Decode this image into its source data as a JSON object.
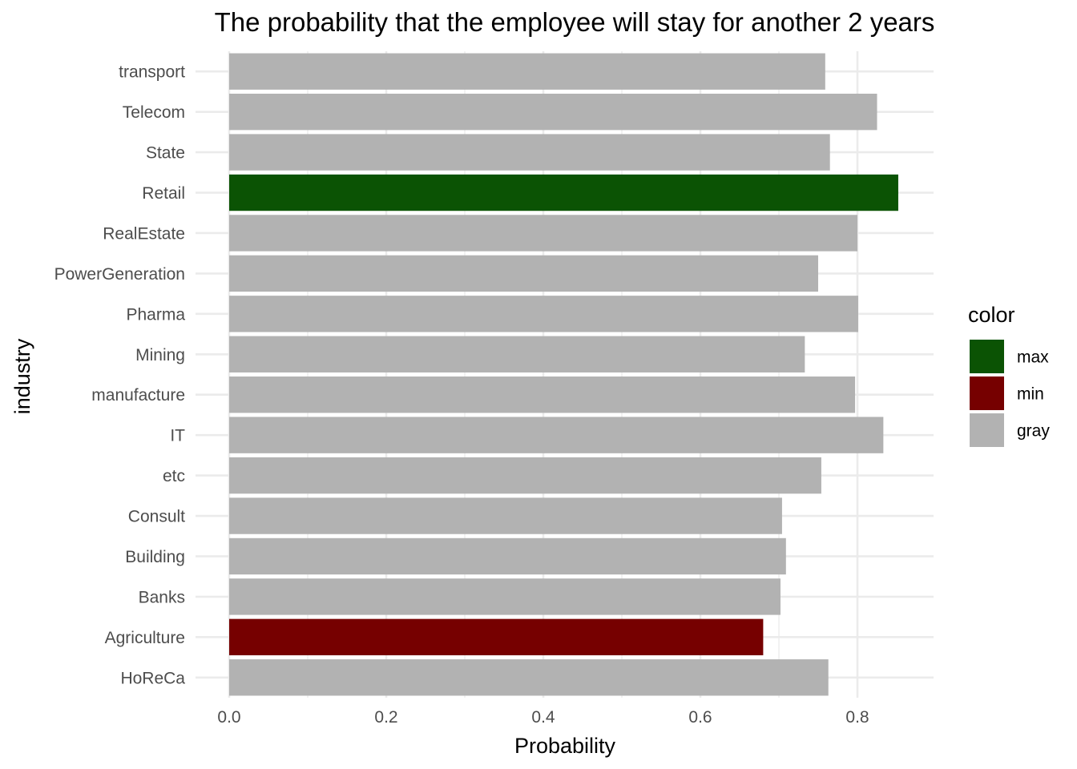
{
  "chart_data": {
    "type": "bar",
    "orientation": "horizontal",
    "title": "The probability that the employee will stay for another 2 years",
    "xlabel": "Probability",
    "ylabel": "industry",
    "xlim": [
      0,
      0.892
    ],
    "x_ticks": [
      0.0,
      0.2,
      0.4,
      0.6,
      0.8
    ],
    "x_tick_labels": [
      "0.0",
      "0.2",
      "0.4",
      "0.6",
      "0.8"
    ],
    "grid": true,
    "categories": [
      "HoReCa",
      "Agriculture",
      "Banks",
      "Building",
      "Consult",
      "etc",
      "IT",
      "manufacture",
      "Mining",
      "Pharma",
      "PowerGeneration",
      "RealEstate",
      "Retail",
      "State",
      "Telecom",
      "transport"
    ],
    "values": [
      0.763,
      0.68,
      0.702,
      0.709,
      0.704,
      0.754,
      0.833,
      0.797,
      0.733,
      0.801,
      0.75,
      0.8,
      0.852,
      0.765,
      0.825,
      0.759
    ],
    "bar_groups": [
      "gray",
      "min",
      "gray",
      "gray",
      "gray",
      "gray",
      "gray",
      "gray",
      "gray",
      "gray",
      "gray",
      "gray",
      "max",
      "gray",
      "gray",
      "gray"
    ],
    "legend": {
      "title": "color",
      "placement": "right",
      "entries": [
        {
          "key": "max",
          "label": "max",
          "color": "#0b5304"
        },
        {
          "key": "min",
          "label": "min",
          "color": "#760000"
        },
        {
          "key": "gray",
          "label": "gray",
          "color": "#b2b2b2"
        }
      ]
    }
  }
}
